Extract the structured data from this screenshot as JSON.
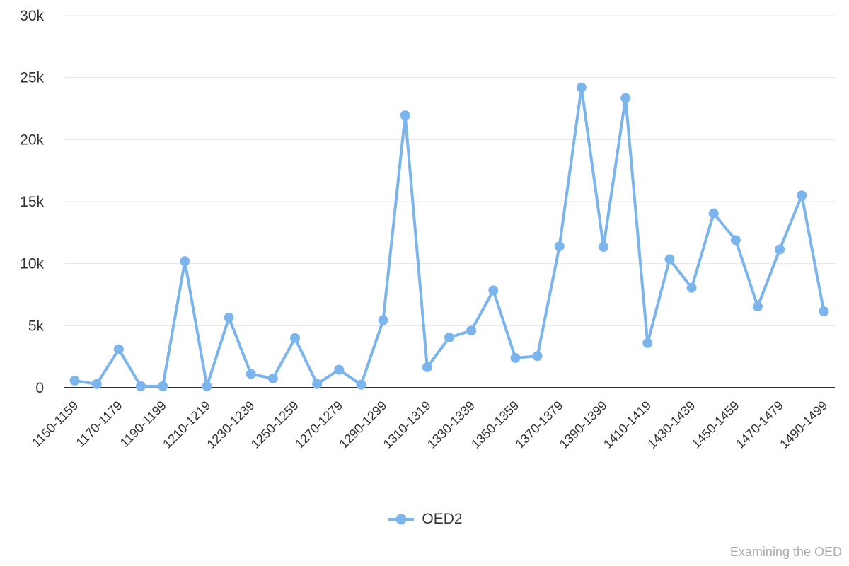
{
  "chart_data": {
    "type": "line",
    "title": "",
    "xlabel": "",
    "ylabel": "",
    "categories": [
      "1150-1159",
      "1160-1169",
      "1170-1179",
      "1180-1189",
      "1190-1199",
      "1200-1209",
      "1210-1219",
      "1220-1229",
      "1230-1239",
      "1240-1249",
      "1250-1259",
      "1260-1269",
      "1270-1279",
      "1280-1289",
      "1290-1299",
      "1300-1309",
      "1310-1319",
      "1320-1329",
      "1330-1339",
      "1340-1349",
      "1350-1359",
      "1360-1369",
      "1370-1379",
      "1380-1389",
      "1390-1399",
      "1400-1409",
      "1410-1419",
      "1420-1429",
      "1430-1439",
      "1440-1449",
      "1450-1459",
      "1460-1469",
      "1470-1479",
      "1480-1489",
      "1490-1499"
    ],
    "x_label_every": 2,
    "series": [
      {
        "name": "OED2",
        "color": "#7cb5ec",
        "values": [
          570,
          290,
          3100,
          120,
          120,
          10200,
          120,
          5650,
          1100,
          750,
          4000,
          300,
          1450,
          250,
          5450,
          21950,
          1650,
          4050,
          4600,
          7850,
          2400,
          2550,
          11400,
          24200,
          11350,
          23350,
          3600,
          10350,
          8050,
          14050,
          11900,
          6550,
          11150,
          15500,
          6150
        ]
      }
    ],
    "ylim": [
      0,
      30000
    ],
    "ytick_interval": 5000,
    "ytick_labels": [
      "0",
      "5k",
      "10k",
      "15k",
      "20k",
      "25k",
      "30k"
    ],
    "grid": true,
    "legend_position": "bottom-center",
    "watermark": "Examining the OED"
  },
  "colors": {
    "series": "#7cb5ec",
    "grid": "#e6e6e6",
    "axis": "#333333",
    "label": "#333333",
    "watermark": "#ababab"
  }
}
